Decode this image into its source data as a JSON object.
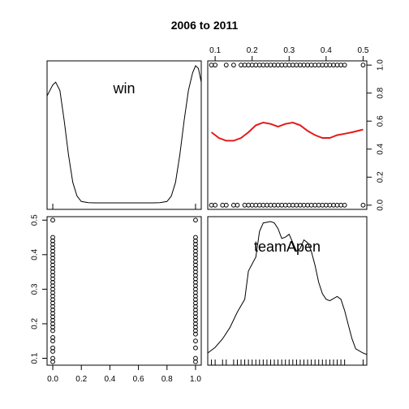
{
  "chart_data": {
    "type": "scatter",
    "title": "2006 to 2011",
    "variables": [
      "win",
      "teamApen"
    ],
    "tick_labels": {
      "win": [
        "0.0",
        "0.2",
        "0.4",
        "0.6",
        "0.8",
        "1.0"
      ],
      "teamApen": [
        "0.1",
        "0.2",
        "0.3",
        "0.4",
        "0.5"
      ]
    },
    "panels": [
      {
        "id": "win-diag",
        "type": "density",
        "label": "win",
        "xlim": [
          -0.04,
          1.04
        ],
        "density_x": [
          -0.04,
          0.0,
          0.02,
          0.05,
          0.08,
          0.11,
          0.14,
          0.17,
          0.2,
          0.25,
          0.3,
          0.5,
          0.7,
          0.75,
          0.8,
          0.83,
          0.86,
          0.89,
          0.92,
          0.95,
          0.98,
          1.0,
          1.02,
          1.04
        ],
        "density_y": [
          0.78,
          0.86,
          0.88,
          0.82,
          0.6,
          0.35,
          0.15,
          0.05,
          0.01,
          0.002,
          0.0,
          0.0,
          0.0,
          0.002,
          0.01,
          0.05,
          0.15,
          0.35,
          0.6,
          0.82,
          0.95,
          1.0,
          0.98,
          0.88
        ],
        "rug": [
          0.0,
          1.0
        ]
      },
      {
        "id": "top-right",
        "type": "scatter",
        "xlabel_var": "teamApen",
        "ylabel_var": "win",
        "xlim": [
          0.08,
          0.51
        ],
        "ylim": [
          -0.03,
          1.03
        ],
        "points": [
          {
            "x": 0.09,
            "y": 0
          },
          {
            "x": 0.1,
            "y": 0
          },
          {
            "x": 0.12,
            "y": 0
          },
          {
            "x": 0.13,
            "y": 0
          },
          {
            "x": 0.15,
            "y": 0
          },
          {
            "x": 0.16,
            "y": 0
          },
          {
            "x": 0.18,
            "y": 0
          },
          {
            "x": 0.19,
            "y": 0
          },
          {
            "x": 0.2,
            "y": 0
          },
          {
            "x": 0.21,
            "y": 0
          },
          {
            "x": 0.22,
            "y": 0
          },
          {
            "x": 0.23,
            "y": 0
          },
          {
            "x": 0.24,
            "y": 0
          },
          {
            "x": 0.25,
            "y": 0
          },
          {
            "x": 0.26,
            "y": 0
          },
          {
            "x": 0.27,
            "y": 0
          },
          {
            "x": 0.28,
            "y": 0
          },
          {
            "x": 0.29,
            "y": 0
          },
          {
            "x": 0.3,
            "y": 0
          },
          {
            "x": 0.31,
            "y": 0
          },
          {
            "x": 0.32,
            "y": 0
          },
          {
            "x": 0.33,
            "y": 0
          },
          {
            "x": 0.34,
            "y": 0
          },
          {
            "x": 0.35,
            "y": 0
          },
          {
            "x": 0.36,
            "y": 0
          },
          {
            "x": 0.37,
            "y": 0
          },
          {
            "x": 0.38,
            "y": 0
          },
          {
            "x": 0.39,
            "y": 0
          },
          {
            "x": 0.4,
            "y": 0
          },
          {
            "x": 0.41,
            "y": 0
          },
          {
            "x": 0.42,
            "y": 0
          },
          {
            "x": 0.43,
            "y": 0
          },
          {
            "x": 0.44,
            "y": 0
          },
          {
            "x": 0.45,
            "y": 0
          },
          {
            "x": 0.5,
            "y": 0
          },
          {
            "x": 0.09,
            "y": 1
          },
          {
            "x": 0.1,
            "y": 1
          },
          {
            "x": 0.13,
            "y": 1
          },
          {
            "x": 0.15,
            "y": 1
          },
          {
            "x": 0.17,
            "y": 1
          },
          {
            "x": 0.18,
            "y": 1
          },
          {
            "x": 0.19,
            "y": 1
          },
          {
            "x": 0.2,
            "y": 1
          },
          {
            "x": 0.21,
            "y": 1
          },
          {
            "x": 0.22,
            "y": 1
          },
          {
            "x": 0.23,
            "y": 1
          },
          {
            "x": 0.24,
            "y": 1
          },
          {
            "x": 0.25,
            "y": 1
          },
          {
            "x": 0.26,
            "y": 1
          },
          {
            "x": 0.27,
            "y": 1
          },
          {
            "x": 0.28,
            "y": 1
          },
          {
            "x": 0.29,
            "y": 1
          },
          {
            "x": 0.3,
            "y": 1
          },
          {
            "x": 0.31,
            "y": 1
          },
          {
            "x": 0.32,
            "y": 1
          },
          {
            "x": 0.33,
            "y": 1
          },
          {
            "x": 0.34,
            "y": 1
          },
          {
            "x": 0.35,
            "y": 1
          },
          {
            "x": 0.36,
            "y": 1
          },
          {
            "x": 0.37,
            "y": 1
          },
          {
            "x": 0.38,
            "y": 1
          },
          {
            "x": 0.39,
            "y": 1
          },
          {
            "x": 0.4,
            "y": 1
          },
          {
            "x": 0.41,
            "y": 1
          },
          {
            "x": 0.42,
            "y": 1
          },
          {
            "x": 0.43,
            "y": 1
          },
          {
            "x": 0.44,
            "y": 1
          },
          {
            "x": 0.45,
            "y": 1
          },
          {
            "x": 0.5,
            "y": 1
          }
        ],
        "smooth": {
          "color": "#e31a1c",
          "x": [
            0.09,
            0.11,
            0.13,
            0.15,
            0.17,
            0.19,
            0.21,
            0.23,
            0.25,
            0.27,
            0.29,
            0.31,
            0.33,
            0.35,
            0.37,
            0.39,
            0.41,
            0.43,
            0.45,
            0.47,
            0.5
          ],
          "y": [
            0.52,
            0.48,
            0.46,
            0.46,
            0.48,
            0.52,
            0.57,
            0.59,
            0.58,
            0.56,
            0.58,
            0.59,
            0.57,
            0.53,
            0.5,
            0.48,
            0.48,
            0.5,
            0.51,
            0.52,
            0.54
          ]
        }
      },
      {
        "id": "bottom-left",
        "type": "scatter",
        "xlabel_var": "win",
        "ylabel_var": "teamApen",
        "xlim": [
          -0.04,
          1.04
        ],
        "ylim": [
          0.08,
          0.51
        ],
        "points": [
          {
            "x": 0,
            "y": 0.09
          },
          {
            "x": 0,
            "y": 0.1
          },
          {
            "x": 0,
            "y": 0.12
          },
          {
            "x": 0,
            "y": 0.13
          },
          {
            "x": 0,
            "y": 0.15
          },
          {
            "x": 0,
            "y": 0.16
          },
          {
            "x": 0,
            "y": 0.18
          },
          {
            "x": 0,
            "y": 0.19
          },
          {
            "x": 0,
            "y": 0.2
          },
          {
            "x": 0,
            "y": 0.21
          },
          {
            "x": 0,
            "y": 0.22
          },
          {
            "x": 0,
            "y": 0.23
          },
          {
            "x": 0,
            "y": 0.24
          },
          {
            "x": 0,
            "y": 0.25
          },
          {
            "x": 0,
            "y": 0.26
          },
          {
            "x": 0,
            "y": 0.27
          },
          {
            "x": 0,
            "y": 0.28
          },
          {
            "x": 0,
            "y": 0.29
          },
          {
            "x": 0,
            "y": 0.3
          },
          {
            "x": 0,
            "y": 0.31
          },
          {
            "x": 0,
            "y": 0.32
          },
          {
            "x": 0,
            "y": 0.33
          },
          {
            "x": 0,
            "y": 0.34
          },
          {
            "x": 0,
            "y": 0.35
          },
          {
            "x": 0,
            "y": 0.36
          },
          {
            "x": 0,
            "y": 0.37
          },
          {
            "x": 0,
            "y": 0.38
          },
          {
            "x": 0,
            "y": 0.39
          },
          {
            "x": 0,
            "y": 0.4
          },
          {
            "x": 0,
            "y": 0.41
          },
          {
            "x": 0,
            "y": 0.42
          },
          {
            "x": 0,
            "y": 0.43
          },
          {
            "x": 0,
            "y": 0.44
          },
          {
            "x": 0,
            "y": 0.45
          },
          {
            "x": 0,
            "y": 0.5
          },
          {
            "x": 1,
            "y": 0.09
          },
          {
            "x": 1,
            "y": 0.1
          },
          {
            "x": 1,
            "y": 0.13
          },
          {
            "x": 1,
            "y": 0.15
          },
          {
            "x": 1,
            "y": 0.17
          },
          {
            "x": 1,
            "y": 0.18
          },
          {
            "x": 1,
            "y": 0.19
          },
          {
            "x": 1,
            "y": 0.2
          },
          {
            "x": 1,
            "y": 0.21
          },
          {
            "x": 1,
            "y": 0.22
          },
          {
            "x": 1,
            "y": 0.23
          },
          {
            "x": 1,
            "y": 0.24
          },
          {
            "x": 1,
            "y": 0.25
          },
          {
            "x": 1,
            "y": 0.26
          },
          {
            "x": 1,
            "y": 0.27
          },
          {
            "x": 1,
            "y": 0.28
          },
          {
            "x": 1,
            "y": 0.29
          },
          {
            "x": 1,
            "y": 0.3
          },
          {
            "x": 1,
            "y": 0.31
          },
          {
            "x": 1,
            "y": 0.32
          },
          {
            "x": 1,
            "y": 0.33
          },
          {
            "x": 1,
            "y": 0.34
          },
          {
            "x": 1,
            "y": 0.35
          },
          {
            "x": 1,
            "y": 0.36
          },
          {
            "x": 1,
            "y": 0.37
          },
          {
            "x": 1,
            "y": 0.38
          },
          {
            "x": 1,
            "y": 0.39
          },
          {
            "x": 1,
            "y": 0.4
          },
          {
            "x": 1,
            "y": 0.41
          },
          {
            "x": 1,
            "y": 0.42
          },
          {
            "x": 1,
            "y": 0.43
          },
          {
            "x": 1,
            "y": 0.44
          },
          {
            "x": 1,
            "y": 0.45
          },
          {
            "x": 1,
            "y": 0.5
          }
        ]
      },
      {
        "id": "teamApen-diag",
        "type": "density",
        "label": "teamApen",
        "xlim": [
          0.08,
          0.51
        ],
        "density_x": [
          0.08,
          0.1,
          0.12,
          0.14,
          0.16,
          0.18,
          0.19,
          0.21,
          0.22,
          0.23,
          0.25,
          0.26,
          0.27,
          0.28,
          0.29,
          0.3,
          0.31,
          0.32,
          0.33,
          0.34,
          0.35,
          0.36,
          0.37,
          0.38,
          0.39,
          0.4,
          0.41,
          0.43,
          0.44,
          0.45,
          0.46,
          0.47,
          0.48,
          0.5,
          0.51
        ],
        "density_y": [
          0.04,
          0.08,
          0.14,
          0.22,
          0.33,
          0.42,
          0.62,
          0.72,
          0.9,
          0.96,
          0.97,
          0.96,
          0.92,
          0.85,
          0.86,
          0.88,
          0.82,
          0.76,
          0.78,
          0.84,
          0.82,
          0.76,
          0.66,
          0.54,
          0.46,
          0.42,
          0.41,
          0.44,
          0.42,
          0.34,
          0.24,
          0.14,
          0.07,
          0.04,
          0.03
        ],
        "rug": [
          0.09,
          0.1,
          0.12,
          0.13,
          0.15,
          0.16,
          0.17,
          0.18,
          0.19,
          0.2,
          0.21,
          0.22,
          0.23,
          0.24,
          0.25,
          0.26,
          0.27,
          0.28,
          0.29,
          0.3,
          0.31,
          0.32,
          0.33,
          0.34,
          0.35,
          0.36,
          0.37,
          0.38,
          0.39,
          0.4,
          0.41,
          0.42,
          0.43,
          0.44,
          0.45,
          0.5
        ]
      }
    ]
  }
}
